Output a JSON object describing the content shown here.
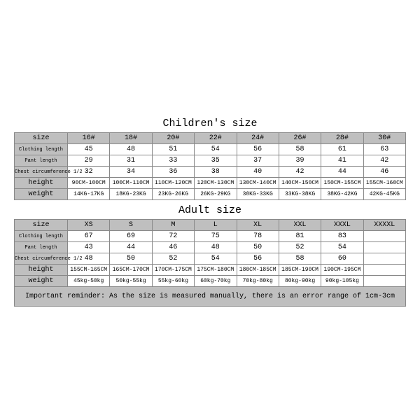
{
  "children": {
    "title": "Children's size",
    "header_label": "size",
    "sizes": [
      "16#",
      "18#",
      "20#",
      "22#",
      "24#",
      "26#",
      "28#",
      "30#"
    ],
    "rows": [
      {
        "label": "Clothing length",
        "label_cls": "row-label-small",
        "cell_cls": "cell-num",
        "cells": [
          "45",
          "48",
          "51",
          "54",
          "56",
          "58",
          "61",
          "63"
        ]
      },
      {
        "label": "Pant length",
        "label_cls": "row-label-small",
        "cell_cls": "cell-num",
        "cells": [
          "29",
          "31",
          "33",
          "35",
          "37",
          "39",
          "41",
          "42"
        ]
      },
      {
        "label": "Chest circumference 1/2",
        "label_cls": "row-label-small",
        "cell_cls": "cell-num",
        "cells": [
          "32",
          "34",
          "36",
          "38",
          "40",
          "42",
          "44",
          "46"
        ]
      },
      {
        "label": "height",
        "label_cls": "row-label-med",
        "cell_cls": "cell-sm",
        "cells": [
          "90CM-100CM",
          "100CM-110CM",
          "110CM-120CM",
          "120CM-130CM",
          "130CM-140CM",
          "140CM-150CM",
          "150CM-155CM",
          "155CM-160CM"
        ]
      },
      {
        "label": "weight",
        "label_cls": "row-label-med",
        "cell_cls": "cell-sm",
        "cells": [
          "14KG-17KG",
          "18KG-23KG",
          "23KG-26KG",
          "26KG-29KG",
          "30KG-33KG",
          "33KG-38KG",
          "38KG-42KG",
          "42KG-45KG"
        ]
      }
    ]
  },
  "adult": {
    "title": "Adult size",
    "header_label": "size",
    "sizes": [
      "XS",
      "S",
      "M",
      "L",
      "XL",
      "XXL",
      "XXXL",
      "XXXXL"
    ],
    "rows": [
      {
        "label": "Clothing length",
        "label_cls": "row-label-small",
        "cell_cls": "cell-num",
        "cells": [
          "67",
          "69",
          "72",
          "75",
          "78",
          "81",
          "83",
          ""
        ]
      },
      {
        "label": "Pant length",
        "label_cls": "row-label-small",
        "cell_cls": "cell-num",
        "cells": [
          "43",
          "44",
          "46",
          "48",
          "50",
          "52",
          "54",
          ""
        ]
      },
      {
        "label": "Chest circumference 1/2",
        "label_cls": "row-label-small",
        "cell_cls": "cell-num",
        "cells": [
          "48",
          "50",
          "52",
          "54",
          "56",
          "58",
          "60",
          ""
        ]
      },
      {
        "label": "height",
        "label_cls": "row-label-med",
        "cell_cls": "cell-sm",
        "cells": [
          "155CM-165CM",
          "165CM-170CM",
          "170CM-175CM",
          "175CM-180CM",
          "180CM-185CM",
          "185CM-190CM",
          "190CM-195CM",
          ""
        ]
      },
      {
        "label": "weight",
        "label_cls": "row-label-med",
        "cell_cls": "cell-sm",
        "cells": [
          "45kg-50kg",
          "50kg-55kg",
          "55kg-60kg",
          "60kg-70kg",
          "70kg-80kg",
          "80kg-90kg",
          "90kg-105kg",
          ""
        ]
      }
    ]
  },
  "reminder": "Important reminder: As the size is measured manually, there is an error range of 1cm-3cm",
  "colors": {
    "header_bg": "#bfbfbf",
    "border": "#888888",
    "background": "#ffffff"
  },
  "fonts": {
    "title_pt": 15,
    "header_pt": 10,
    "small_label_pt": 7,
    "med_label_pt": 10,
    "cell_small_pt": 8,
    "cell_num_pt": 10
  }
}
